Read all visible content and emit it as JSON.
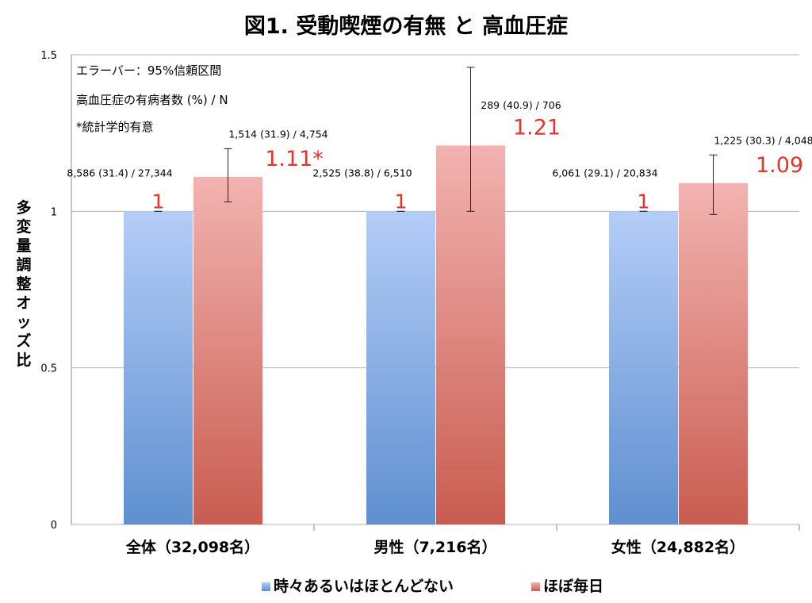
{
  "chart_data": {
    "type": "bar",
    "title": "図1. 受動喫煙の有無 と 高血圧症",
    "ylabel": "多変量調整オッズ比",
    "xlabel": "",
    "ylim": [
      0,
      1.5
    ],
    "yticks": [
      "0",
      "0.5",
      "1",
      "1.5"
    ],
    "grid": true,
    "legend_placement": "bottom",
    "categories": [
      "全体（32,098名）",
      "男性（7,216名）",
      "女性（24,882名）"
    ],
    "series": [
      {
        "name": "時々あるいはほとんどない",
        "color": "#7fa8e0",
        "values": [
          1,
          1,
          1
        ],
        "value_labels": [
          "1",
          "1",
          "1"
        ],
        "ci_lower": [
          1,
          1,
          1
        ],
        "ci_upper": [
          1,
          1,
          1
        ],
        "counts": [
          "8,586 (31.4) / 27,344",
          "2,525 (38.8) / 6,510",
          "6,061 (29.1) / 20,834"
        ]
      },
      {
        "name": "ほぼ毎日",
        "color": "#e08880",
        "values": [
          1.11,
          1.21,
          1.09
        ],
        "value_labels": [
          "1.11*",
          "1.21",
          "1.09"
        ],
        "ci_lower": [
          1.03,
          1.0,
          0.99
        ],
        "ci_upper": [
          1.2,
          1.46,
          1.18
        ],
        "counts": [
          "1,514 (31.9) / 4,754",
          "289 (40.9) / 706",
          "1,225 (30.3) / 4,048"
        ]
      }
    ],
    "annotations": [
      "エラーバー：95%信頼区間",
      "高血圧症の有病者数 (%) / N",
      "*統計学的有意"
    ],
    "value_label_color": "#e8332a"
  }
}
